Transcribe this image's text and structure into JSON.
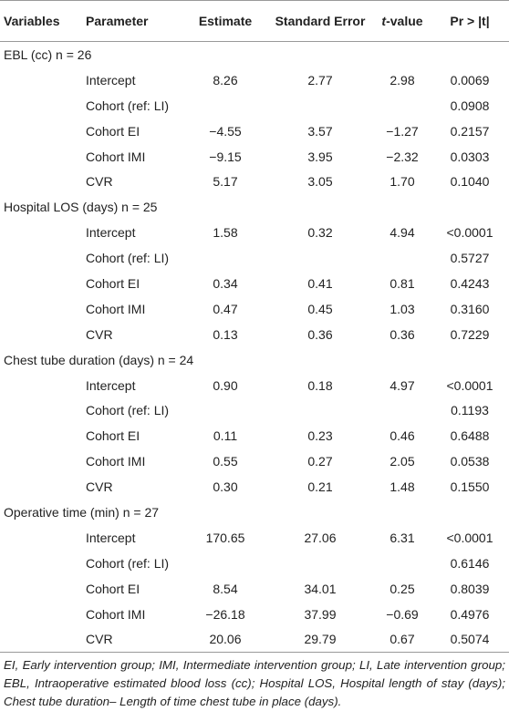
{
  "table": {
    "header": [
      "Variables",
      "Parameter",
      "Estimate",
      "Standard Error",
      "t-value",
      "Pr > |t|"
    ],
    "groups": [
      {
        "label": "EBL (cc) n = 26",
        "rows": [
          [
            "Intercept",
            "8.26",
            "2.77",
            "2.98",
            "0.0069"
          ],
          [
            "Cohort (ref: LI)",
            null,
            null,
            null,
            "0.0908"
          ],
          [
            "Cohort EI",
            "−4.55",
            "3.57",
            "−1.27",
            "0.2157"
          ],
          [
            "Cohort IMI",
            "−9.15",
            "3.95",
            "−2.32",
            "0.0303"
          ],
          [
            "CVR",
            "5.17",
            "3.05",
            "1.70",
            "0.1040"
          ]
        ]
      },
      {
        "label": "Hospital LOS (days) n = 25",
        "rows": [
          [
            "Intercept",
            "1.58",
            "0.32",
            "4.94",
            "<0.0001"
          ],
          [
            "Cohort (ref: LI)",
            null,
            null,
            null,
            "0.5727"
          ],
          [
            "Cohort EI",
            "0.34",
            "0.41",
            "0.81",
            "0.4243"
          ],
          [
            "Cohort IMI",
            "0.47",
            "0.45",
            "1.03",
            "0.3160"
          ],
          [
            "CVR",
            "0.13",
            "0.36",
            "0.36",
            "0.7229"
          ]
        ]
      },
      {
        "label": "Chest tube duration (days) n = 24",
        "rows": [
          [
            "Intercept",
            "0.90",
            "0.18",
            "4.97",
            "<0.0001"
          ],
          [
            "Cohort (ref: LI)",
            null,
            null,
            null,
            "0.1193"
          ],
          [
            "Cohort EI",
            "0.11",
            "0.23",
            "0.46",
            "0.6488"
          ],
          [
            "Cohort IMI",
            "0.55",
            "0.27",
            "2.05",
            "0.0538"
          ],
          [
            "CVR",
            "0.30",
            "0.21",
            "1.48",
            "0.1550"
          ]
        ]
      },
      {
        "label": "Operative time (min) n = 27",
        "rows": [
          [
            "Intercept",
            "170.65",
            "27.06",
            "6.31",
            "<0.0001"
          ],
          [
            "Cohort (ref: LI)",
            null,
            null,
            null,
            "0.6146"
          ],
          [
            "Cohort EI",
            "8.54",
            "34.01",
            "0.25",
            "0.8039"
          ],
          [
            "Cohort IMI",
            "−26.18",
            "37.99",
            "−0.69",
            "0.4976"
          ],
          [
            "CVR",
            "20.06",
            "29.79",
            "0.67",
            "0.5074"
          ]
        ]
      }
    ]
  },
  "footnote": "EI, Early intervention group; IMI, Intermediate intervention group; LI, Late intervention group; EBL, Intraoperative estimated blood loss (cc); Hospital LOS, Hospital length of stay (days); Chest tube duration– Length of time chest tube in place (days)."
}
